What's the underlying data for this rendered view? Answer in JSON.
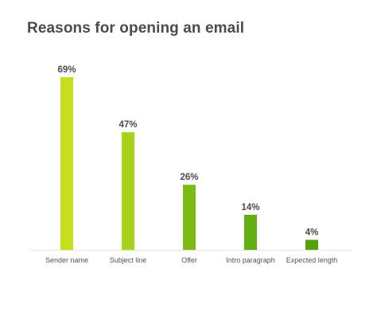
{
  "chart_data": {
    "type": "bar",
    "title": "Reasons for opening an email",
    "categories": [
      "Sender name",
      "Subject line",
      "Offer",
      "Intro paragraph",
      "Expected length"
    ],
    "values": [
      69,
      47,
      26,
      14,
      4
    ],
    "value_labels": [
      "69%",
      "47%",
      "26%",
      "14%",
      "4%"
    ],
    "xlabel": "",
    "ylabel": "",
    "ylim": [
      0,
      69
    ],
    "grid": false,
    "legend": "none",
    "bar_colors": [
      "#c5df1f",
      "#a8d21a",
      "#7cbb14",
      "#62ad11",
      "#55a10e"
    ],
    "baseline_color": "#e2e2e2"
  }
}
